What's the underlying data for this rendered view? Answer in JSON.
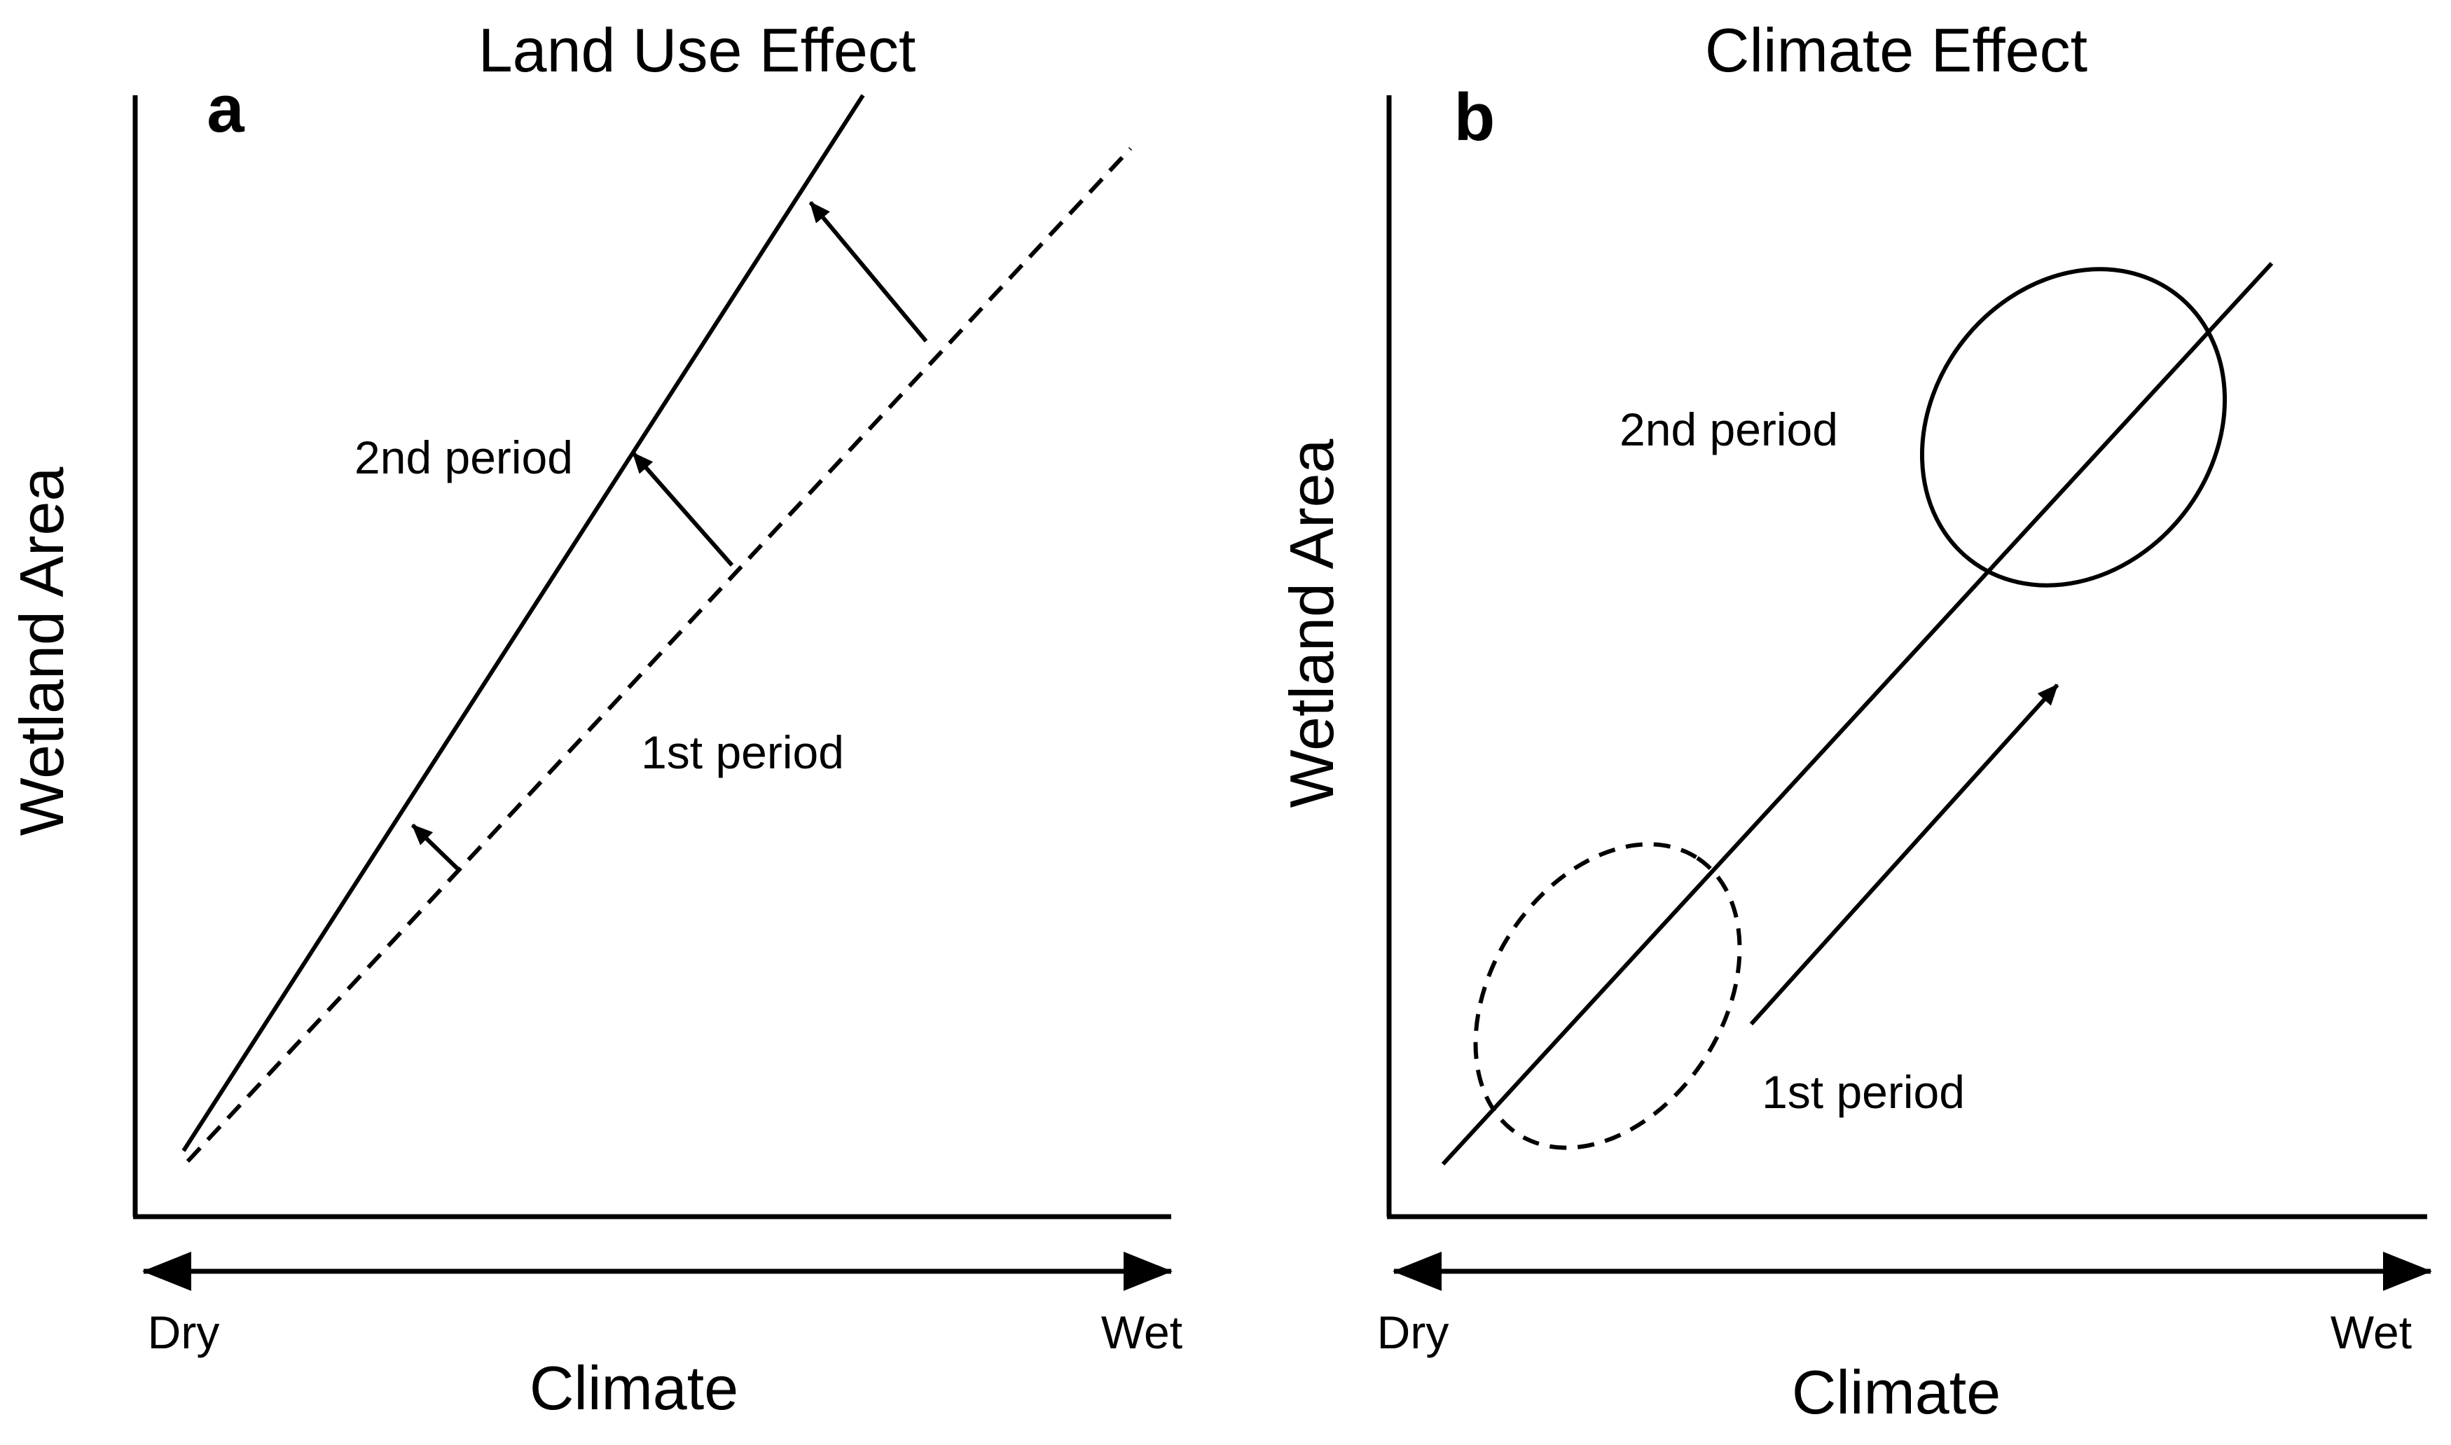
{
  "panels": [
    {
      "id": "a",
      "letter": "a",
      "title": "Land Use Effect",
      "ylabel": "Wetland Area",
      "xlabel": "Climate",
      "x_left": "Dry",
      "x_right": "Wet",
      "label_upper": "2nd period",
      "label_lower": "1st period"
    },
    {
      "id": "b",
      "letter": "b",
      "title": "Climate Effect",
      "ylabel": "Wetland Area",
      "xlabel": "Climate",
      "x_left": "Dry",
      "x_right": "Wet",
      "label_upper": "2nd period",
      "label_lower": "1st period"
    }
  ],
  "colors": {
    "ink": "#000000",
    "background": "#ffffff"
  }
}
